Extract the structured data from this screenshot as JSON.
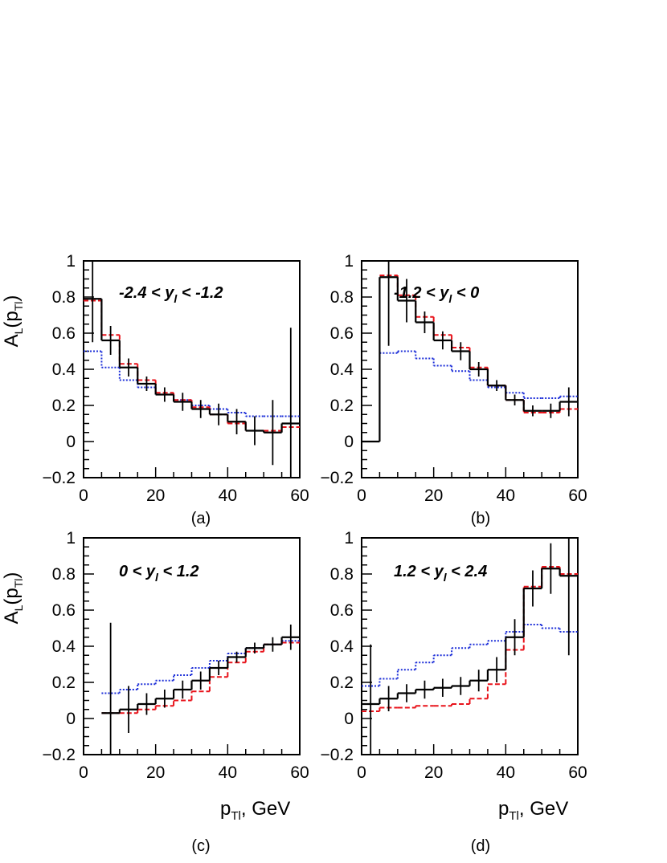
{
  "chart_data": [
    {
      "type": "line",
      "panel": "(a)",
      "range_label": {
        "lo": "-2.4",
        "var": "y",
        "sub": "l",
        "hi": "-1.2"
      },
      "ylabel": {
        "main": "A",
        "sub1": "L",
        "open": "(p",
        "sub2": "Tl",
        "close": ")"
      },
      "xlabel": null,
      "xlim": [
        0,
        60
      ],
      "ylim": [
        -0.2,
        1
      ],
      "xticks": [
        "0",
        "20",
        "40",
        "60"
      ],
      "yticks": [
        "−0.2",
        "0",
        "0.2",
        "0.4",
        "0.6",
        "0.8",
        "1"
      ],
      "bin_edges": [
        0,
        5,
        10,
        15,
        20,
        25,
        30,
        35,
        40,
        45,
        50,
        55,
        60
      ],
      "series": [
        {
          "style": "black-solid",
          "values": [
            0.79,
            0.56,
            0.41,
            0.32,
            0.26,
            0.22,
            0.18,
            0.15,
            0.11,
            0.06,
            0.05,
            0.1
          ],
          "errors": [
            0.24,
            0.08,
            0.05,
            0.04,
            0.04,
            0.05,
            0.05,
            0.06,
            0.07,
            0.08,
            0.18,
            0.53
          ]
        },
        {
          "style": "red-dashed",
          "values": [
            0.78,
            0.59,
            0.43,
            0.34,
            0.27,
            0.23,
            0.19,
            0.15,
            0.1,
            0.06,
            0.06,
            0.08
          ]
        },
        {
          "style": "blue-dotted",
          "values": [
            0.5,
            0.41,
            0.34,
            0.3,
            0.26,
            0.23,
            0.2,
            0.18,
            0.16,
            0.14,
            0.14,
            0.14
          ]
        }
      ]
    },
    {
      "type": "line",
      "panel": "(b)",
      "range_label": {
        "lo": "-1.2",
        "var": "y",
        "sub": "l",
        "hi": "0"
      },
      "ylabel": null,
      "xlabel": null,
      "xlim": [
        0,
        60
      ],
      "ylim": [
        -0.2,
        1
      ],
      "xticks": [
        "0",
        "20",
        "40",
        "60"
      ],
      "yticks": [
        "−0.2",
        "0",
        "0.2",
        "0.4",
        "0.6",
        "0.8",
        "1"
      ],
      "bin_edges": [
        0,
        5,
        10,
        15,
        20,
        25,
        30,
        35,
        40,
        45,
        50,
        55,
        60
      ],
      "series": [
        {
          "style": "black-solid",
          "values": [
            0.0,
            0.91,
            0.78,
            0.66,
            0.56,
            0.5,
            0.4,
            0.31,
            0.23,
            0.17,
            0.17,
            0.22
          ],
          "errors": [
            null,
            0.38,
            0.12,
            0.06,
            0.05,
            0.05,
            0.04,
            0.03,
            0.03,
            0.03,
            0.04,
            0.08
          ]
        },
        {
          "style": "red-dashed",
          "values": [
            null,
            0.92,
            0.81,
            0.69,
            0.59,
            0.52,
            0.41,
            0.31,
            0.23,
            0.16,
            0.16,
            0.18
          ]
        },
        {
          "style": "blue-dotted",
          "values": [
            null,
            0.49,
            0.5,
            0.46,
            0.42,
            0.39,
            0.34,
            0.3,
            0.27,
            0.24,
            0.24,
            0.25
          ]
        }
      ]
    },
    {
      "type": "line",
      "panel": "(c)",
      "range_label": {
        "lo": "0",
        "var": "y",
        "sub": "l",
        "hi": "1.2"
      },
      "ylabel": {
        "main": "A",
        "sub1": "L",
        "open": "(p",
        "sub2": "Tl",
        "close": ")"
      },
      "xlabel": {
        "main": "p",
        "sub": "Tl",
        "rest": ", GeV"
      },
      "xlim": [
        0,
        60
      ],
      "ylim": [
        -0.2,
        1
      ],
      "xticks": [
        "0",
        "20",
        "40",
        "60"
      ],
      "yticks": [
        "−0.2",
        "0",
        "0.2",
        "0.4",
        "0.6",
        "0.8",
        "1"
      ],
      "bin_edges": [
        0,
        5,
        10,
        15,
        20,
        25,
        30,
        35,
        40,
        45,
        50,
        55,
        60
      ],
      "series": [
        {
          "style": "black-solid",
          "values": [
            null,
            0.03,
            0.05,
            0.08,
            0.11,
            0.16,
            0.21,
            0.28,
            0.34,
            0.39,
            0.41,
            0.45
          ],
          "errors": [
            null,
            0.5,
            0.13,
            0.06,
            0.05,
            0.05,
            0.05,
            0.04,
            0.03,
            0.03,
            0.04,
            0.07
          ]
        },
        {
          "style": "red-dashed",
          "values": [
            null,
            0.03,
            0.03,
            0.05,
            0.07,
            0.1,
            0.15,
            0.23,
            0.31,
            0.37,
            0.41,
            0.42
          ]
        },
        {
          "style": "blue-dotted",
          "values": [
            null,
            0.14,
            0.16,
            0.19,
            0.21,
            0.24,
            0.28,
            0.32,
            0.36,
            0.39,
            0.41,
            0.43
          ]
        }
      ]
    },
    {
      "type": "line",
      "panel": "(d)",
      "range_label": {
        "lo": "1.2",
        "var": "y",
        "sub": "l",
        "hi": "2.4"
      },
      "ylabel": null,
      "xlabel": {
        "main": "p",
        "sub": "Tl",
        "rest": ", GeV"
      },
      "xlim": [
        0,
        60
      ],
      "ylim": [
        -0.2,
        1
      ],
      "xticks": [
        "0",
        "20",
        "40",
        "60"
      ],
      "yticks": [
        "−0.2",
        "0",
        "0.2",
        "0.4",
        "0.6",
        "0.8",
        "1"
      ],
      "bin_edges": [
        0,
        5,
        10,
        15,
        20,
        25,
        30,
        35,
        40,
        45,
        50,
        55,
        60
      ],
      "series": [
        {
          "style": "black-solid",
          "values": [
            0.08,
            0.11,
            0.14,
            0.16,
            0.17,
            0.18,
            0.21,
            0.27,
            0.45,
            0.72,
            0.83,
            0.79
          ],
          "errors": [
            0.33,
            0.07,
            0.05,
            0.05,
            0.05,
            0.05,
            0.06,
            0.07,
            0.1,
            0.1,
            0.14,
            0.44
          ]
        },
        {
          "style": "red-dashed",
          "values": [
            0.04,
            0.06,
            0.06,
            0.07,
            0.07,
            0.08,
            0.11,
            0.19,
            0.38,
            0.73,
            0.84,
            0.8
          ]
        },
        {
          "style": "blue-dotted",
          "values": [
            0.18,
            0.22,
            0.27,
            0.31,
            0.35,
            0.39,
            0.41,
            0.43,
            0.48,
            0.52,
            0.5,
            0.48
          ]
        }
      ]
    }
  ],
  "colors": {
    "black-solid": "#000000",
    "red-dashed": "#e8121a",
    "blue-dotted": "#1d2fd8"
  }
}
